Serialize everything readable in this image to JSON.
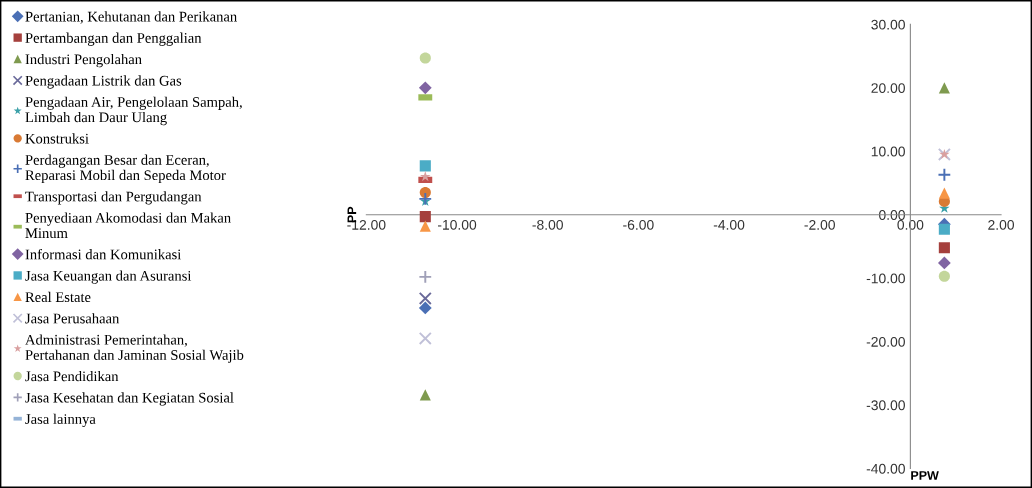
{
  "chart_data": {
    "type": "scatter",
    "xlabel": "PPW",
    "ylabel": "PP",
    "xlim": [
      -12,
      2
    ],
    "xticks": [
      {
        "value": -12,
        "label": "-12.00"
      },
      {
        "value": -10,
        "label": "-10.00"
      },
      {
        "value": -8,
        "label": "-8.00"
      },
      {
        "value": -6,
        "label": "-6.00"
      },
      {
        "value": -4,
        "label": "-4.00"
      },
      {
        "value": -2,
        "label": "-2.00"
      },
      {
        "value": 0,
        "label": "0.00"
      },
      {
        "value": 2,
        "label": "2.00"
      }
    ],
    "ylim": [
      -40,
      30
    ],
    "yticks": [
      {
        "value": -40,
        "label": "-40.00"
      },
      {
        "value": -30,
        "label": "-30.00"
      },
      {
        "value": -20,
        "label": "-20.00"
      },
      {
        "value": -10,
        "label": "-10.00"
      },
      {
        "value": 0,
        "label": "0.00"
      },
      {
        "value": 10,
        "label": "10.00"
      },
      {
        "value": 20,
        "label": "20.00"
      },
      {
        "value": 30,
        "label": "30.00"
      }
    ],
    "grid": false,
    "legend": "left",
    "x": [
      -10.7,
      0.75
    ],
    "series": [
      {
        "name": "Pertanian, Kehutanan dan Perikanan",
        "color": "#4a6fb5",
        "marker": "diamond",
        "values": [
          -14.7,
          -1.5
        ]
      },
      {
        "name": "Pertambangan dan Penggalian",
        "color": "#a5403d",
        "marker": "square",
        "values": [
          -0.3,
          -5.2
        ]
      },
      {
        "name": "Industri Pengolahan",
        "color": "#7f9a4f",
        "marker": "triangle",
        "values": [
          -28.4,
          20.0
        ]
      },
      {
        "name": "Pengadaan Listrik dan Gas",
        "color": "#6a6a9a",
        "marker": "cross",
        "values": [
          -13.2,
          null
        ]
      },
      {
        "name": "Pengadaan Air, Pengelolaan Sampah,\nLimbah dan Daur Ulang",
        "color": "#3aa0a8",
        "marker": "star",
        "values": [
          2.1,
          1.0
        ]
      },
      {
        "name": "Konstruksi",
        "color": "#d97a34",
        "marker": "circle",
        "values": [
          3.5,
          2.1
        ]
      },
      {
        "name": "Perdagangan Besar dan Eceran,\nReparasi Mobil dan Sepeda Motor",
        "color": "#4a6fb5",
        "marker": "plus",
        "values": [
          2.5,
          6.3
        ]
      },
      {
        "name": "Transportasi dan Pergudangan",
        "color": "#c0504d",
        "values": [
          5.5,
          null
        ]
      },
      {
        "name": "Penyediaan Akomodasi dan Makan\nMinum",
        "color": "#9bbb59",
        "values": [
          18.5,
          null
        ]
      },
      {
        "name": "Informasi dan Komunikasi",
        "color": "#8064a2",
        "marker": "diamond",
        "values": [
          20.0,
          -7.6
        ]
      },
      {
        "name": "Jasa Keuangan dan Asuransi",
        "color": "#4bacc6",
        "marker": "square",
        "values": [
          7.7,
          -2.3
        ]
      },
      {
        "name": "Real Estate",
        "color": "#f79646",
        "marker": "triangle",
        "values": [
          -1.8,
          3.4
        ]
      },
      {
        "name": "Jasa Perusahaan",
        "color": "#c0c0d8",
        "marker": "cross",
        "values": [
          -19.5,
          9.5
        ]
      },
      {
        "name": "Administrasi Pemerintahan,\nPertahanan dan Jaminan Sosial Wajib",
        "color": "#d9a0a0",
        "marker": "star",
        "values": [
          6.0,
          9.5
        ]
      },
      {
        "name": "Jasa Pendidikan",
        "color": "#c3d69b",
        "marker": "circle",
        "values": [
          24.7,
          -9.7
        ]
      },
      {
        "name": "Jasa Kesehatan dan Kegiatan Sosial",
        "color": "#a0a0b8",
        "marker": "plus",
        "values": [
          -9.8,
          null
        ]
      },
      {
        "name": "Jasa lainnya",
        "color": "#95b3d7",
        "values": [
          null,
          null
        ]
      }
    ]
  }
}
